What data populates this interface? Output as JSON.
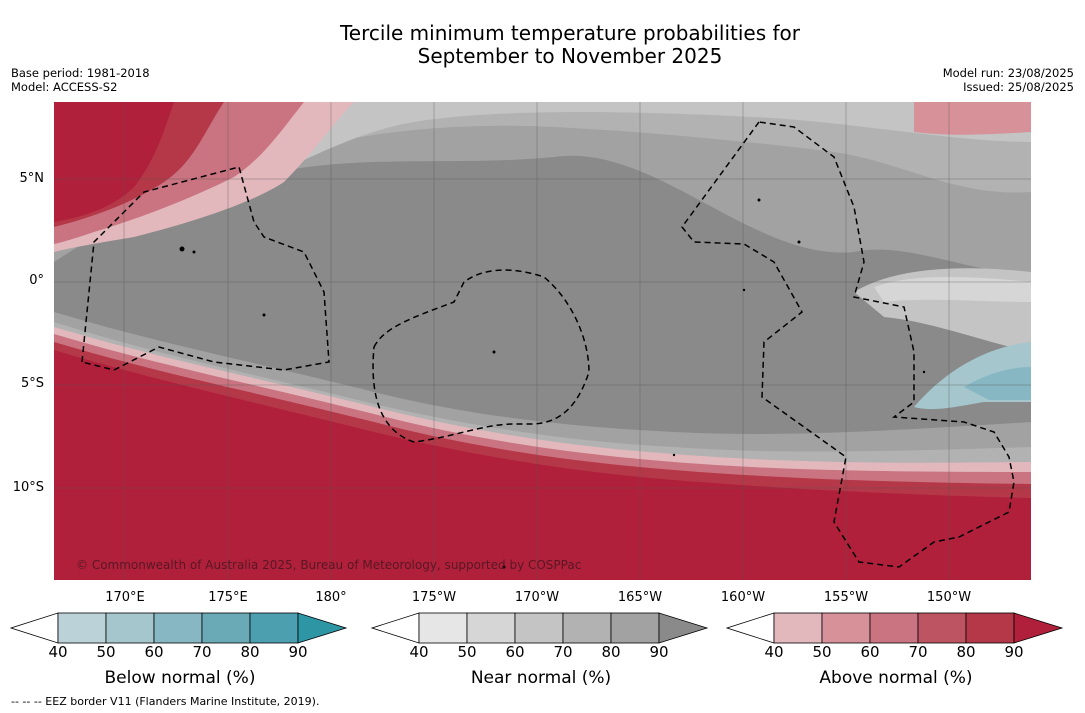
{
  "title": {
    "line1": "Tercile minimum temperature probabilities for",
    "line2": "September to November 2025"
  },
  "meta_left": {
    "base_period": "Base period: 1981-2018",
    "model": "Model: ACCESS-S2"
  },
  "meta_right": {
    "model_run": "Model run: 23/08/2025",
    "issued": "Issued: 25/08/2025"
  },
  "map": {
    "longitude_labels": [
      "170°E",
      "175°E",
      "180°",
      "175°W",
      "170°W",
      "165°W",
      "160°W",
      "155°W",
      "150°W"
    ],
    "latitude_labels": [
      "5°N",
      "0°",
      "5°S",
      "10°S"
    ],
    "copyright": "© Commonwealth of Australia 2025, Bureau of Meteorology, supported by COSPPac"
  },
  "colorbars": [
    {
      "title": "Below normal (%)",
      "ticks": [
        "40",
        "50",
        "60",
        "70",
        "80",
        "90"
      ],
      "colors": [
        "#ffffff",
        "#bcd2d9",
        "#a4c6cc",
        "#86b7c2",
        "#6aaab6",
        "#4b9fae",
        "#2e95a4"
      ]
    },
    {
      "title": "Near normal (%)",
      "ticks": [
        "40",
        "50",
        "60",
        "70",
        "80",
        "90"
      ],
      "colors": [
        "#ffffff",
        "#e6e6e6",
        "#d6d6d6",
        "#c4c4c4",
        "#b2b2b2",
        "#a2a2a2",
        "#8a8a8a"
      ]
    },
    {
      "title": "Above normal (%)",
      "ticks": [
        "40",
        "50",
        "60",
        "70",
        "80",
        "90"
      ],
      "colors": [
        "#ffffff",
        "#e2b8bd",
        "#d69199",
        "#c97480",
        "#bd5462",
        "#b53849",
        "#b0203b"
      ]
    }
  ],
  "footnote": "--  --  -- EEZ border V11 (Flanders Marine Institute, 2019)."
}
